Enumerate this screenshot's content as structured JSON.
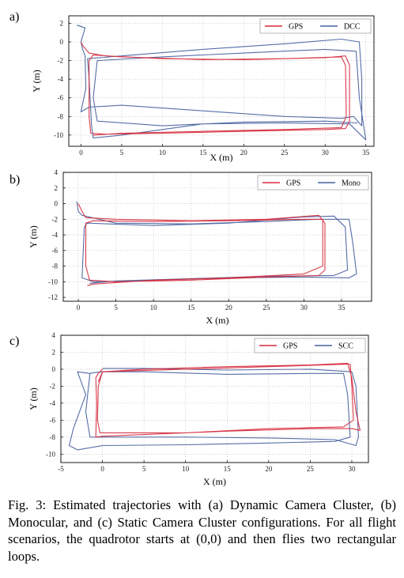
{
  "caption": "Fig. 3: Estimated trajectories with (a) Dynamic Camera Cluster, (b) Monocular, and (c) Static Camera Cluster configurations. For all flight scenarios, the quadrotor starts at (0,0) and then flies two rectangular loops.",
  "colors": {
    "gps": "#d62a3c",
    "estimate": "#46619e",
    "grid": "#b8b8b8"
  },
  "chart_data": [
    {
      "type": "line",
      "panel": "a)",
      "xlabel": "X (m)",
      "ylabel": "Y (m)",
      "xlim": [
        -1.5,
        36
      ],
      "ylim": [
        -11.2,
        2.8
      ],
      "xticks": [
        0,
        5,
        10,
        15,
        20,
        25,
        30,
        35
      ],
      "yticks": [
        2,
        0,
        -2,
        -4,
        -6,
        -8,
        -10
      ],
      "grid": true,
      "legend_position": "top-right",
      "series": [
        {
          "name": "GPS",
          "role": "gps",
          "points": [
            [
              0,
              0
            ],
            [
              0.3,
              -0.5
            ],
            [
              1,
              -1.2
            ],
            [
              3,
              -1.5
            ],
            [
              10,
              -1.8
            ],
            [
              20,
              -1.9
            ],
            [
              30,
              -1.7
            ],
            [
              32.5,
              -1.5
            ],
            [
              33,
              -2.5
            ],
            [
              33,
              -8.5
            ],
            [
              32.5,
              -9.3
            ],
            [
              30,
              -9.4
            ],
            [
              20,
              -9.6
            ],
            [
              10,
              -9.8
            ],
            [
              3,
              -9.9
            ],
            [
              1.2,
              -9.8
            ],
            [
              1,
              -8
            ],
            [
              1,
              -2
            ],
            [
              1.5,
              -1.4
            ],
            [
              5,
              -1.6
            ],
            [
              15,
              -1.9
            ],
            [
              25,
              -1.8
            ],
            [
              32,
              -1.6
            ],
            [
              32.5,
              -2.5
            ],
            [
              32.6,
              -8
            ],
            [
              32,
              -9.2
            ],
            [
              25,
              -9.4
            ],
            [
              15,
              -9.6
            ],
            [
              5,
              -9.8
            ],
            [
              1.5,
              -10
            ]
          ]
        },
        {
          "name": "DCC",
          "role": "estimate",
          "points": [
            [
              -0.5,
              1.8
            ],
            [
              0.5,
              1.5
            ],
            [
              0,
              0
            ],
            [
              0.2,
              -0.8
            ],
            [
              0.5,
              -1.5
            ],
            [
              0.6,
              -5
            ],
            [
              0,
              -7.5
            ],
            [
              1,
              -7
            ],
            [
              5,
              -6.8
            ],
            [
              15,
              -7.4
            ],
            [
              25,
              -8
            ],
            [
              32,
              -8.2
            ],
            [
              33.5,
              -8
            ],
            [
              34.5,
              -9
            ],
            [
              34.5,
              -4
            ],
            [
              34.2,
              0
            ],
            [
              32,
              0.3
            ],
            [
              25,
              -0.2
            ],
            [
              15,
              -0.8
            ],
            [
              5,
              -1.5
            ],
            [
              0.8,
              -1.8
            ],
            [
              1,
              -4
            ],
            [
              1.3,
              -9
            ],
            [
              1.5,
              -10.3
            ],
            [
              5,
              -10
            ],
            [
              15,
              -8.8
            ],
            [
              25,
              -8.7
            ],
            [
              33,
              -8.8
            ],
            [
              35,
              -10.5
            ],
            [
              34.2,
              -6
            ],
            [
              33.8,
              -1
            ],
            [
              30,
              -0.8
            ],
            [
              20,
              -1.2
            ],
            [
              10,
              -1.6
            ],
            [
              2,
              -2
            ],
            [
              1.5,
              -6
            ],
            [
              2,
              -8.5
            ],
            [
              10,
              -9
            ],
            [
              20,
              -8.6
            ],
            [
              30,
              -8.5
            ],
            [
              34,
              -8.7
            ]
          ]
        }
      ]
    },
    {
      "type": "line",
      "panel": "b)",
      "xlabel": "X (m)",
      "ylabel": "Y (m)",
      "xlim": [
        -2,
        39
      ],
      "ylim": [
        -12.5,
        4
      ],
      "xticks": [
        0,
        5,
        10,
        15,
        20,
        25,
        30,
        35
      ],
      "yticks": [
        4,
        2,
        0,
        -2,
        -4,
        -6,
        -8,
        -10,
        -12
      ],
      "grid": true,
      "legend_position": "top-right",
      "series": [
        {
          "name": "GPS",
          "role": "gps",
          "points": [
            [
              0,
              0
            ],
            [
              0.5,
              -1
            ],
            [
              1,
              -1.8
            ],
            [
              5,
              -2
            ],
            [
              15,
              -2.2
            ],
            [
              25,
              -2
            ],
            [
              32,
              -1.5
            ],
            [
              32.8,
              -2.5
            ],
            [
              32.8,
              -8.5
            ],
            [
              32,
              -9.2
            ],
            [
              25,
              -9.4
            ],
            [
              15,
              -9.8
            ],
            [
              5,
              -10
            ],
            [
              1.5,
              -9.8
            ],
            [
              1,
              -8
            ],
            [
              1,
              -2.5
            ],
            [
              2,
              -2.2
            ],
            [
              10,
              -2.3
            ],
            [
              20,
              -2.2
            ],
            [
              30,
              -2
            ],
            [
              32.5,
              -2
            ],
            [
              32.5,
              -8
            ],
            [
              30,
              -9
            ],
            [
              20,
              -9.5
            ],
            [
              10,
              -9.8
            ],
            [
              2,
              -10.3
            ],
            [
              1.2,
              -10.5
            ]
          ]
        },
        {
          "name": "Mono",
          "role": "estimate",
          "points": [
            [
              -0.2,
              0.3
            ],
            [
              0,
              -1
            ],
            [
              0.5,
              -1.5
            ],
            [
              5,
              -2.5
            ],
            [
              15,
              -2.6
            ],
            [
              25,
              -2.3
            ],
            [
              32,
              -2
            ],
            [
              36,
              -2
            ],
            [
              36.5,
              -5
            ],
            [
              37,
              -9
            ],
            [
              36,
              -9.5
            ],
            [
              30,
              -9.4
            ],
            [
              20,
              -9.5
            ],
            [
              10,
              -9.8
            ],
            [
              2,
              -10
            ],
            [
              0.5,
              -9.5
            ],
            [
              0.8,
              -3
            ],
            [
              1.2,
              -2.5
            ],
            [
              10,
              -2.8
            ],
            [
              20,
              -2.5
            ],
            [
              30,
              -1.7
            ],
            [
              34,
              -1.6
            ],
            [
              35.5,
              -3
            ],
            [
              35.8,
              -8.5
            ],
            [
              34,
              -9.2
            ],
            [
              25,
              -9.3
            ],
            [
              15,
              -9.6
            ],
            [
              5,
              -9.9
            ],
            [
              1.5,
              -10.2
            ]
          ]
        }
      ]
    },
    {
      "type": "line",
      "panel": "c)",
      "xlabel": "X (m)",
      "ylabel": "Y (m)",
      "xlim": [
        -5,
        32
      ],
      "ylim": [
        -11,
        4
      ],
      "xticks": [
        -5,
        0,
        5,
        10,
        15,
        20,
        25,
        30
      ],
      "yticks": [
        4,
        2,
        0,
        -2,
        -4,
        -6,
        -8,
        -10
      ],
      "grid": true,
      "legend_position": "top-right",
      "series": [
        {
          "name": "GPS",
          "role": "gps",
          "points": [
            [
              0,
              0
            ],
            [
              -0.5,
              -0.5
            ],
            [
              -0.8,
              -1
            ],
            [
              -0.7,
              -4
            ],
            [
              -0.8,
              -8
            ],
            [
              0,
              -7.9
            ],
            [
              5,
              -7.7
            ],
            [
              15,
              -7.3
            ],
            [
              25,
              -7
            ],
            [
              30,
              -7
            ],
            [
              31,
              -7.2
            ],
            [
              30.5,
              -5
            ],
            [
              30,
              -1
            ],
            [
              29.5,
              0.7
            ],
            [
              25,
              0.5
            ],
            [
              15,
              0.3
            ],
            [
              5,
              0
            ],
            [
              0,
              -0.3
            ],
            [
              -0.5,
              -2
            ],
            [
              -0.6,
              -6
            ],
            [
              -0.3,
              -7.5
            ],
            [
              10,
              -7.5
            ],
            [
              20,
              -7
            ],
            [
              29,
              -6.8
            ],
            [
              30.2,
              -6
            ],
            [
              30,
              -2
            ],
            [
              29.8,
              0.6
            ],
            [
              20,
              0.3
            ],
            [
              10,
              0
            ],
            [
              0,
              -0.3
            ],
            [
              -0.5,
              -1.5
            ]
          ]
        },
        {
          "name": "SCC",
          "role": "estimate",
          "points": [
            [
              -1.5,
              -0.5
            ],
            [
              -1,
              -0.4
            ],
            [
              0,
              -0.3
            ],
            [
              5,
              -0.3
            ],
            [
              15,
              -0.6
            ],
            [
              25,
              -0.5
            ],
            [
              29,
              -0.5
            ],
            [
              29.5,
              -3
            ],
            [
              29.8,
              -8
            ],
            [
              28,
              -8.5
            ],
            [
              20,
              -8.7
            ],
            [
              10,
              -8.9
            ],
            [
              0,
              -9
            ],
            [
              -3,
              -9.5
            ],
            [
              -4,
              -9
            ],
            [
              -3.5,
              -7
            ],
            [
              -2,
              -3
            ],
            [
              -3,
              -0.3
            ],
            [
              -1.5,
              -0.5
            ],
            [
              -2,
              -5
            ],
            [
              -1.5,
              -8
            ],
            [
              0,
              -8
            ],
            [
              10,
              -8
            ],
            [
              20,
              -8.1
            ],
            [
              28,
              -8.3
            ],
            [
              30.5,
              -9
            ],
            [
              30.8,
              -8
            ],
            [
              30.5,
              -2
            ],
            [
              30,
              -0.3
            ],
            [
              25,
              0
            ],
            [
              15,
              -0.1
            ],
            [
              5,
              0.1
            ],
            [
              0,
              0.1
            ]
          ]
        }
      ]
    }
  ]
}
